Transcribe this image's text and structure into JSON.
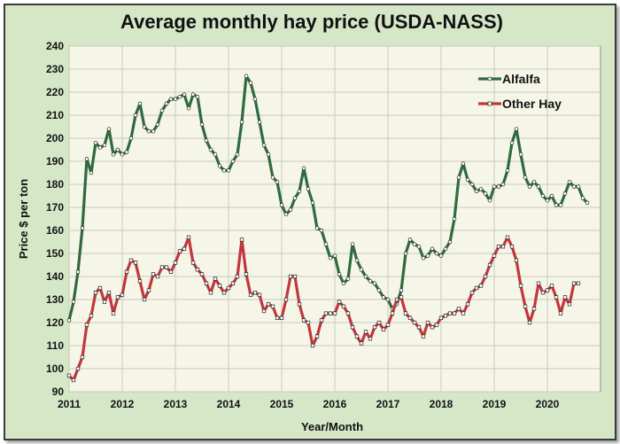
{
  "chart_data": {
    "type": "line",
    "title": "Average monthly hay price (USDA-NASS)",
    "xlabel": "Year/Month",
    "ylabel": "Price $ per ton",
    "ylim": [
      90,
      240
    ],
    "yticks": [
      90,
      100,
      110,
      120,
      130,
      140,
      150,
      160,
      170,
      180,
      190,
      200,
      210,
      220,
      230,
      240
    ],
    "xlim": [
      2011,
      2021
    ],
    "xticks": [
      "2011",
      "2012",
      "2013",
      "2014",
      "2015",
      "2016",
      "2017",
      "2018",
      "2019",
      "2020"
    ],
    "grid": true,
    "legend_position": "top-right",
    "x_start": "2011-01",
    "series": [
      {
        "name": "Alfalfa",
        "color": "#2f6b3c",
        "values": [
          121,
          129,
          142,
          161,
          191,
          185,
          198,
          196,
          197,
          204,
          193,
          195,
          193,
          194,
          200,
          210,
          215,
          205,
          203,
          203,
          206,
          212,
          215,
          217,
          217,
          218,
          219,
          213,
          219,
          218,
          206,
          199,
          195,
          193,
          188,
          186,
          186,
          190,
          193,
          207,
          227,
          224,
          217,
          207,
          197,
          193,
          183,
          181,
          171,
          167,
          169,
          174,
          177,
          187,
          178,
          172,
          161,
          160,
          154,
          148,
          149,
          141,
          137,
          139,
          154,
          147,
          143,
          140,
          138,
          137,
          134,
          131,
          130,
          126,
          128,
          134,
          150,
          156,
          154,
          153,
          148,
          149,
          152,
          150,
          149,
          152,
          155,
          165,
          183,
          189,
          182,
          180,
          177,
          178,
          176,
          173,
          179,
          179,
          180,
          186,
          198,
          204,
          193,
          183,
          179,
          181,
          179,
          175,
          173,
          175,
          171,
          171,
          176,
          181,
          179,
          179,
          174,
          172
        ]
      },
      {
        "name": "Other Hay",
        "color": "#c1373c",
        "values": [
          97,
          95,
          100,
          105,
          119,
          123,
          133,
          135,
          129,
          133,
          124,
          131,
          132,
          142,
          147,
          146,
          138,
          130,
          134,
          141,
          140,
          144,
          144,
          142,
          146,
          151,
          152,
          157,
          146,
          143,
          141,
          137,
          133,
          139,
          136,
          133,
          135,
          137,
          140,
          156,
          141,
          132,
          133,
          132,
          125,
          128,
          127,
          122,
          122,
          130,
          140,
          140,
          128,
          121,
          120,
          110,
          114,
          121,
          124,
          124,
          124,
          129,
          127,
          124,
          118,
          114,
          111,
          116,
          113,
          118,
          120,
          117,
          119,
          124,
          130,
          131,
          124,
          122,
          120,
          118,
          114,
          120,
          118,
          119,
          122,
          123,
          124,
          124,
          126,
          124,
          128,
          133,
          135,
          136,
          140,
          145,
          149,
          153,
          153,
          157,
          153,
          147,
          136,
          127,
          120,
          126,
          137,
          133,
          134,
          136,
          131,
          124,
          131,
          128,
          137,
          137
        ]
      }
    ]
  }
}
